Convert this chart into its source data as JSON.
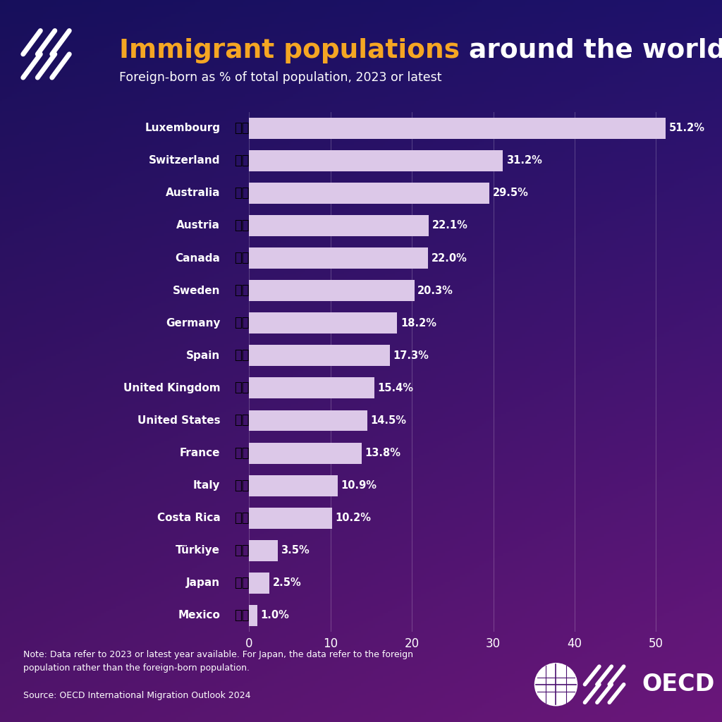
{
  "title_part1": "Immigrant populations",
  "title_part2": " around the world",
  "subtitle": "Foreign-born as % of total population, 2023 or latest",
  "countries": [
    "Luxembourg",
    "Switzerland",
    "Australia",
    "Austria",
    "Canada",
    "Sweden",
    "Germany",
    "Spain",
    "United Kingdom",
    "United States",
    "France",
    "Italy",
    "Costa Rica",
    "Türkiye",
    "Japan",
    "Mexico"
  ],
  "values": [
    51.2,
    31.2,
    29.5,
    22.1,
    22.0,
    20.3,
    18.2,
    17.3,
    15.4,
    14.5,
    13.8,
    10.9,
    10.2,
    3.5,
    2.5,
    1.0
  ],
  "bar_color": "#dcc8e8",
  "title_color1": "#f5a623",
  "title_color2": "#ffffff",
  "note_text": "Note: Data refer to 2023 or latest year available. For Japan, the data refer to the foreign\npopulation rather than the foreign-born population.",
  "source_text": "Source: OECD International Migration Outlook 2024",
  "xlim": [
    0,
    55
  ],
  "xticks": [
    0,
    10,
    20,
    30,
    40,
    50
  ],
  "bar_height": 0.65,
  "flag_emojis": [
    "🇱🇺",
    "🇨🇭",
    "🇦🇺",
    "🇦🇹",
    "🇨🇦",
    "🇸🇪",
    "🇩🇪",
    "🇪🇸",
    "🇬🇧",
    "🇺🇸",
    "🇫🇷",
    "🇮🇹",
    "🇨🇷",
    "🇹🇷",
    "🇯🇵",
    "🇲🇽"
  ],
  "grad_tl": [
    0.09,
    0.06,
    0.36
  ],
  "grad_tr": [
    0.12,
    0.07,
    0.42
  ],
  "grad_bl": [
    0.32,
    0.08,
    0.42
  ],
  "grad_br": [
    0.42,
    0.09,
    0.48
  ]
}
